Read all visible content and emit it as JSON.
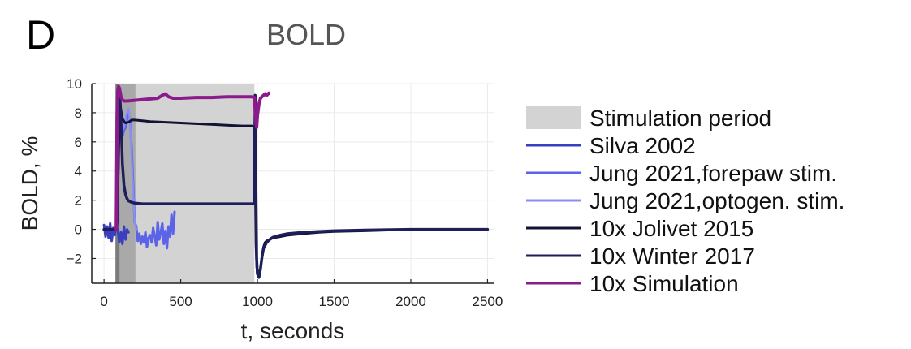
{
  "panel_label": "D",
  "chart_data": {
    "type": "line",
    "title": "BOLD",
    "xlabel": "t, seconds",
    "ylabel": "BOLD, %",
    "xlim": [
      -80,
      2540
    ],
    "ylim": [
      -3.7,
      10
    ],
    "xticks": [
      0,
      500,
      1000,
      1500,
      2000,
      2500
    ],
    "xtick_labels": [
      "0",
      "500",
      "1000",
      "1500",
      "2000",
      "2500"
    ],
    "yticks": [
      -2,
      0,
      2,
      4,
      6,
      8,
      10
    ],
    "ytick_labels": [
      "−2",
      "0",
      "2",
      "4",
      "6",
      "8",
      "10"
    ],
    "grid": true,
    "legend_position": "right",
    "stimulation_period": {
      "name": "Stimulation period",
      "color": "#d3d3d3",
      "dark_color": "#a9a9a9",
      "start": 85,
      "end": 980,
      "dark_start": 85,
      "dark_end": 205
    },
    "series": [
      {
        "name": "Silva 2002",
        "color": "#3a3fbf",
        "x": [
          0,
          10,
          20,
          30,
          40,
          50,
          60,
          70,
          80,
          85,
          90,
          100,
          110,
          120,
          130,
          140,
          150,
          160
        ],
        "y": [
          0.3,
          -0.5,
          0.2,
          -0.6,
          0.4,
          -0.8,
          0.1,
          -0.4,
          0.3,
          0,
          0,
          -0.9,
          -0.2,
          -1.0,
          0.2,
          -0.7,
          0.0,
          -0.2
        ]
      },
      {
        "name": "Jung 2021,forepaw stim.",
        "color": "#5b63e8",
        "x": [
          80,
          85,
          92,
          100,
          110,
          120,
          130,
          140,
          150,
          160,
          170,
          180,
          190,
          200,
          210,
          220,
          230,
          240,
          250,
          260,
          270,
          280,
          290,
          300,
          310,
          320,
          330,
          340,
          350,
          360,
          370,
          380,
          390,
          400,
          410,
          420,
          430,
          440,
          450,
          460
        ],
        "y": [
          0,
          2,
          8.8,
          9.0,
          7.2,
          6.4,
          6.8,
          7.0,
          7.6,
          7.9,
          7.5,
          5.5,
          3.0,
          0.5,
          0.2,
          -0.8,
          -0.3,
          -1.0,
          -0.5,
          -0.9,
          -0.2,
          -1.2,
          -0.6,
          -0.4,
          -0.9,
          0.1,
          -0.5,
          -1.1,
          0.5,
          -0.7,
          -0.2,
          0.4,
          -1.0,
          -0.1,
          -1.3,
          0.2,
          -0.5,
          1.0,
          -0.3,
          1.2
        ]
      },
      {
        "name": "Jung 2021,optogen. stim.",
        "color": "#8a90f2",
        "x": [
          80,
          90,
          100,
          110,
          120,
          130,
          140,
          150,
          160,
          170,
          180,
          190,
          200,
          210
        ],
        "y": [
          0,
          3.0,
          8.0,
          7.4,
          6.8,
          7.0,
          7.6,
          8.0,
          8.3,
          7.4,
          5.0,
          2.5,
          0.6,
          0.0
        ]
      },
      {
        "name": "10x Jolivet 2015",
        "color": "#121235",
        "x": [
          0,
          60,
          80,
          85,
          90,
          95,
          100,
          105,
          110,
          120,
          130,
          140,
          160,
          180,
          200,
          250,
          300,
          400,
          500,
          600,
          700,
          800,
          900,
          960,
          980,
          985,
          990,
          995,
          1000,
          1010,
          1020,
          1030,
          1040,
          1050,
          1060,
          1080,
          1100,
          1150,
          1200,
          1300,
          1400,
          1500,
          1700,
          2000,
          2300,
          2500
        ],
        "y": [
          0,
          0,
          0,
          0.5,
          2.5,
          5.0,
          7.5,
          8.6,
          8.2,
          7.6,
          7.4,
          7.3,
          7.35,
          7.5,
          7.5,
          7.45,
          7.4,
          7.35,
          7.3,
          7.25,
          7.2,
          7.15,
          7.1,
          7.1,
          7.05,
          4.0,
          -1.0,
          -2.5,
          -3.1,
          -3.2,
          -2.8,
          -1.8,
          -1.2,
          -0.9,
          -0.8,
          -0.7,
          -0.6,
          -0.5,
          -0.4,
          -0.3,
          -0.2,
          -0.15,
          -0.1,
          0,
          0,
          0
        ]
      },
      {
        "name": "10x Winter 2017",
        "color": "#1e1e5a",
        "x": [
          0,
          60,
          80,
          85,
          90,
          95,
          100,
          105,
          110,
          115,
          120,
          130,
          140,
          150,
          160,
          180,
          200,
          250,
          300,
          400,
          500,
          600,
          700,
          800,
          900,
          980,
          985,
          990,
          995,
          1000,
          1010,
          1020,
          1030,
          1040,
          1060,
          1080,
          1100,
          1150,
          1200,
          1300,
          1400,
          1500,
          1700,
          2000,
          2300,
          2500
        ],
        "y": [
          0,
          0,
          0,
          0.5,
          3.0,
          7.0,
          9.3,
          8.8,
          7.5,
          6.2,
          4.5,
          3.0,
          2.4,
          2.1,
          1.95,
          1.85,
          1.8,
          1.75,
          1.75,
          1.75,
          1.75,
          1.75,
          1.75,
          1.75,
          1.75,
          1.75,
          9.2,
          3.0,
          -2.0,
          -3.0,
          -3.3,
          -2.7,
          -1.9,
          -1.3,
          -0.9,
          -0.7,
          -0.55,
          -0.4,
          -0.3,
          -0.2,
          -0.15,
          -0.1,
          -0.05,
          0,
          0,
          0
        ]
      },
      {
        "name": "10x Simulation",
        "color": "#8b1a8b",
        "x": [
          80,
          85,
          90,
          95,
          100,
          105,
          110,
          120,
          130,
          150,
          200,
          250,
          300,
          350,
          380,
          400,
          420,
          450,
          500,
          600,
          700,
          800,
          900,
          960,
          980,
          990,
          995,
          1000,
          1010,
          1020,
          1030,
          1040,
          1050,
          1060,
          1070,
          1075
        ],
        "y": [
          0,
          7.5,
          9.5,
          9.8,
          9.7,
          9.4,
          9.1,
          8.9,
          8.8,
          8.8,
          8.85,
          8.9,
          8.95,
          9.0,
          9.2,
          9.3,
          9.1,
          9.0,
          9.0,
          9.05,
          9.05,
          9.1,
          9.1,
          9.1,
          9.05,
          7.4,
          7.0,
          7.8,
          8.6,
          9.0,
          9.1,
          9.2,
          9.3,
          9.2,
          9.3,
          9.35
        ]
      }
    ]
  }
}
